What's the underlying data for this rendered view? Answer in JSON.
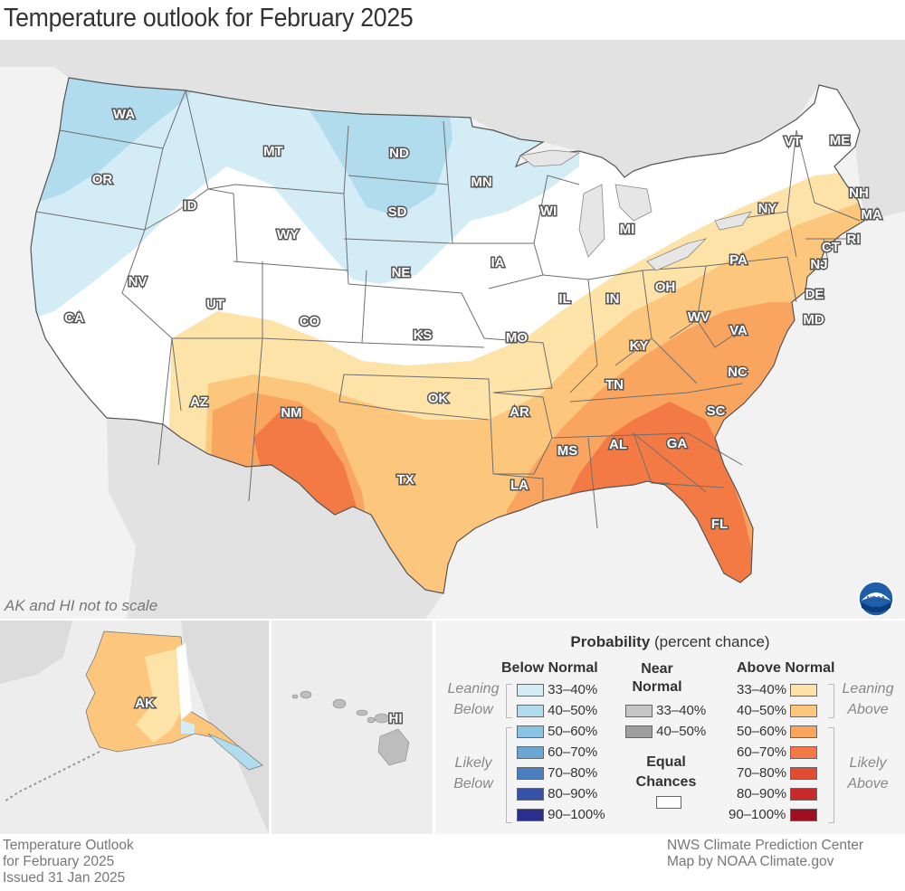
{
  "title": "Temperature outlook for February 2025",
  "map_note": "AK and HI not to scale",
  "logo": {
    "name": "noaa-logo",
    "text": "NOAA"
  },
  "states": [
    {
      "abbr": "WA",
      "category": "Below 40–50%"
    },
    {
      "abbr": "OR",
      "category": "Below 40–50%"
    },
    {
      "abbr": "CA",
      "category": "Equal Chances"
    },
    {
      "abbr": "ID",
      "category": "Equal Chances"
    },
    {
      "abbr": "NV",
      "category": "Equal Chances"
    },
    {
      "abbr": "MT",
      "category": "Below 33–40%"
    },
    {
      "abbr": "WY",
      "category": "Equal Chances"
    },
    {
      "abbr": "UT",
      "category": "Equal Chances"
    },
    {
      "abbr": "AZ",
      "category": "Above 33–40%"
    },
    {
      "abbr": "CO",
      "category": "Equal Chances"
    },
    {
      "abbr": "NM",
      "category": "Above 50–60%"
    },
    {
      "abbr": "ND",
      "category": "Below 40–50%"
    },
    {
      "abbr": "SD",
      "category": "Below 40–50%"
    },
    {
      "abbr": "NE",
      "category": "Below 33–40%"
    },
    {
      "abbr": "KS",
      "category": "Equal Chances"
    },
    {
      "abbr": "OK",
      "category": "Above 33–40%"
    },
    {
      "abbr": "TX",
      "category": "Above 40–50%"
    },
    {
      "abbr": "MN",
      "category": "Below 33–40%"
    },
    {
      "abbr": "IA",
      "category": "Equal Chances"
    },
    {
      "abbr": "MO",
      "category": "Equal Chances"
    },
    {
      "abbr": "AR",
      "category": "Above 33–40%"
    },
    {
      "abbr": "LA",
      "category": "Above 40–50%"
    },
    {
      "abbr": "WI",
      "category": "Equal Chances"
    },
    {
      "abbr": "IL",
      "category": "Equal Chances"
    },
    {
      "abbr": "MS",
      "category": "Above 50–60%"
    },
    {
      "abbr": "MI",
      "category": "Equal Chances"
    },
    {
      "abbr": "IN",
      "category": "Above 33–40%"
    },
    {
      "abbr": "KY",
      "category": "Above 40–50%"
    },
    {
      "abbr": "TN",
      "category": "Above 40–50%"
    },
    {
      "abbr": "AL",
      "category": "Above 50–60%"
    },
    {
      "abbr": "OH",
      "category": "Above 33–40%"
    },
    {
      "abbr": "GA",
      "category": "Above 60–70%"
    },
    {
      "abbr": "FL",
      "category": "Above 60–70%"
    },
    {
      "abbr": "SC",
      "category": "Above 50–60%"
    },
    {
      "abbr": "NC",
      "category": "Above 50–60%"
    },
    {
      "abbr": "VA",
      "category": "Above 50–60%"
    },
    {
      "abbr": "WV",
      "category": "Above 40–50%"
    },
    {
      "abbr": "PA",
      "category": "Above 40–50%"
    },
    {
      "abbr": "NY",
      "category": "Above 33–40%"
    },
    {
      "abbr": "VT",
      "category": "Equal Chances"
    },
    {
      "abbr": "NH",
      "category": "Above 33–40%"
    },
    {
      "abbr": "ME",
      "category": "Equal Chances"
    },
    {
      "abbr": "MA",
      "category": "Above 40–50%"
    },
    {
      "abbr": "RI",
      "category": "Above 40–50%"
    },
    {
      "abbr": "CT",
      "category": "Above 40–50%"
    },
    {
      "abbr": "NJ",
      "category": "Above 40–50%"
    },
    {
      "abbr": "DE",
      "category": "Above 40–50%"
    },
    {
      "abbr": "MD",
      "category": "Above 40–50%"
    }
  ],
  "insets": {
    "alaska": {
      "abbr": "AK"
    },
    "hawaii": {
      "abbr": "HI"
    }
  },
  "legend": {
    "title_bold": "Probability",
    "title_rest": " (percent chance)",
    "below_header": "Below Normal",
    "near_header_1": "Near",
    "near_header_2": "Normal",
    "above_header": "Above Normal",
    "leaning_below_1": "Leaning",
    "leaning_below_2": "Below",
    "likely_below_1": "Likely",
    "likely_below_2": "Below",
    "leaning_above_1": "Leaning",
    "leaning_above_2": "Above",
    "likely_above_1": "Likely",
    "likely_above_2": "Above",
    "equal_1": "Equal",
    "equal_2": "Chances",
    "below": [
      {
        "label": "33–40%",
        "color": "#d4ecf6"
      },
      {
        "label": "40–50%",
        "color": "#b0dcee"
      },
      {
        "label": "50–60%",
        "color": "#89c3e3"
      },
      {
        "label": "60–70%",
        "color": "#6aa7d4"
      },
      {
        "label": "70–80%",
        "color": "#4a7ec1"
      },
      {
        "label": "80–90%",
        "color": "#3552a8"
      },
      {
        "label": "90–100%",
        "color": "#2a2f8f"
      }
    ],
    "near": [
      {
        "label": "33–40%",
        "color": "#c6c6c6"
      },
      {
        "label": "40–50%",
        "color": "#9e9e9e"
      }
    ],
    "equal_color": "#ffffff",
    "above": [
      {
        "label": "33–40%",
        "color": "#fde3a8"
      },
      {
        "label": "40–50%",
        "color": "#fcc67c"
      },
      {
        "label": "50–60%",
        "color": "#f9a45f"
      },
      {
        "label": "60–70%",
        "color": "#f47a45"
      },
      {
        "label": "70–80%",
        "color": "#e34a33"
      },
      {
        "label": "80–90%",
        "color": "#c72a28"
      },
      {
        "label": "90–100%",
        "color": "#9e0f22"
      }
    ]
  },
  "footer": {
    "left_1": "Temperature Outlook",
    "left_2": "for February 2025",
    "left_3": "Issued 31 Jan 2025",
    "right_1": "NWS Climate Prediction Center",
    "right_2": "Map by NOAA Climate.gov"
  }
}
